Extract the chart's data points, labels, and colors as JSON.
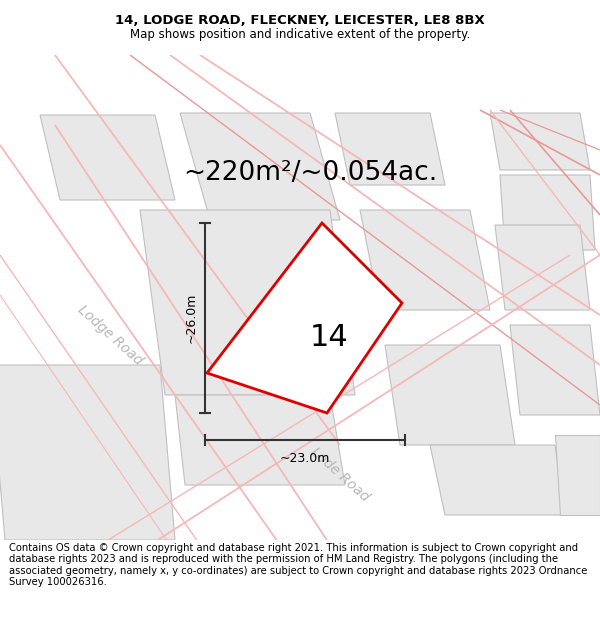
{
  "title_line1": "14, LODGE ROAD, FLECKNEY, LEICESTER, LE8 8BX",
  "title_line2": "Map shows position and indicative extent of the property.",
  "area_text": "~220m²/~0.054ac.",
  "property_label": "14",
  "dim_vertical": "~26.0m",
  "dim_horizontal": "~23.0m",
  "road_label_diag": "Lode Road",
  "road_label_left": "Lodge Road",
  "footer_text": "Contains OS data © Crown copyright and database right 2021. This information is subject to Crown copyright and database rights 2023 and is reproduced with the permission of HM Land Registry. The polygons (including the associated geometry, namely x, y co-ordinates) are subject to Crown copyright and database rights 2023 Ordnance Survey 100026316.",
  "bg_color": "#ffffff",
  "map_bg_color": "#ffffff",
  "property_color": "#dd0000",
  "building_fill": "#e8e8e8",
  "building_edge": "#c0c0c0",
  "road_line_color": "#f5b8b8",
  "road_line_color2": "#e89898",
  "dim_line_color": "#333333",
  "title_fontsize": 9.5,
  "subtitle_fontsize": 8.5,
  "area_fontsize": 19,
  "label_fontsize": 22,
  "dim_fontsize": 9,
  "road_fontsize": 10,
  "footer_fontsize": 7.2
}
